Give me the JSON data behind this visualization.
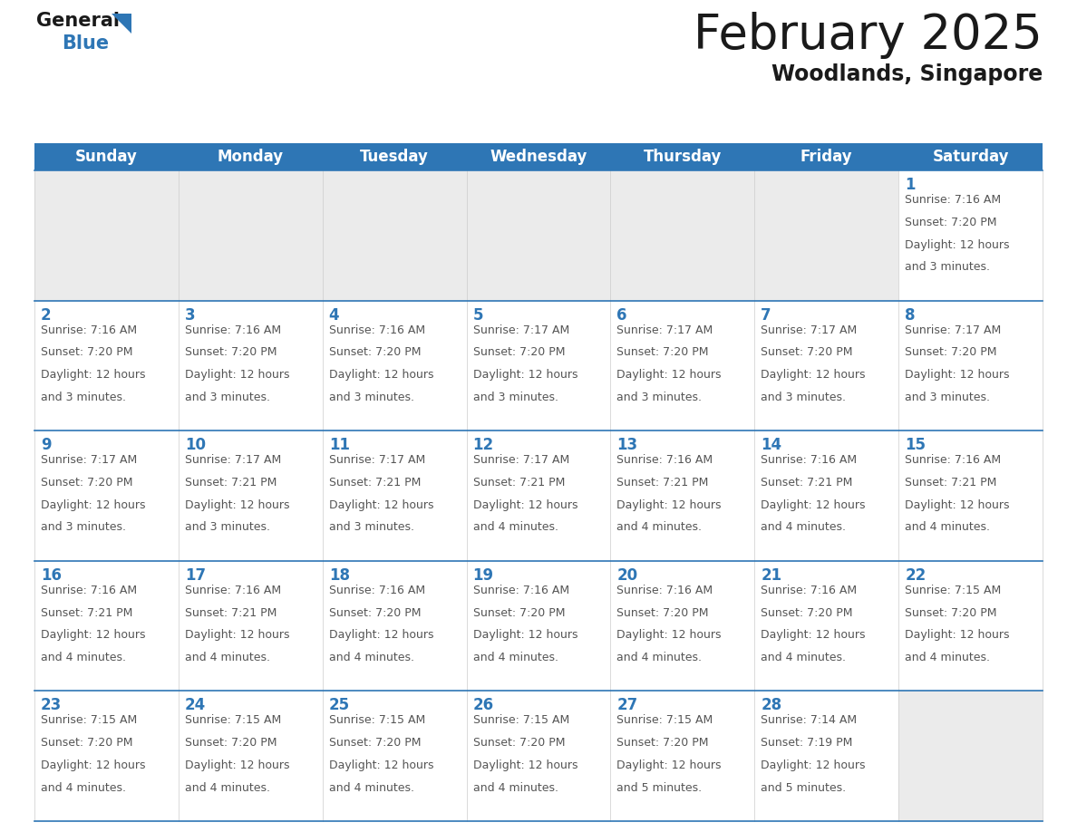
{
  "title": "February 2025",
  "subtitle": "Woodlands, Singapore",
  "header_bg": "#2E76B5",
  "header_text_color": "#FFFFFF",
  "cell_bg_empty": "#EBEBEB",
  "cell_bg_filled": "#FFFFFF",
  "day_number_color": "#2E76B5",
  "info_text_color": "#555555",
  "separator_color": "#2E76B5",
  "grid_line_color": "#CCCCCC",
  "days_of_week": [
    "Sunday",
    "Monday",
    "Tuesday",
    "Wednesday",
    "Thursday",
    "Friday",
    "Saturday"
  ],
  "weeks": [
    [
      {
        "day": null
      },
      {
        "day": null
      },
      {
        "day": null
      },
      {
        "day": null
      },
      {
        "day": null
      },
      {
        "day": null
      },
      {
        "day": 1,
        "sunrise": "7:16 AM",
        "sunset": "7:20 PM",
        "daylight_line1": "Daylight: 12 hours",
        "daylight_line2": "and 3 minutes."
      }
    ],
    [
      {
        "day": 2,
        "sunrise": "7:16 AM",
        "sunset": "7:20 PM",
        "daylight_line1": "Daylight: 12 hours",
        "daylight_line2": "and 3 minutes."
      },
      {
        "day": 3,
        "sunrise": "7:16 AM",
        "sunset": "7:20 PM",
        "daylight_line1": "Daylight: 12 hours",
        "daylight_line2": "and 3 minutes."
      },
      {
        "day": 4,
        "sunrise": "7:16 AM",
        "sunset": "7:20 PM",
        "daylight_line1": "Daylight: 12 hours",
        "daylight_line2": "and 3 minutes."
      },
      {
        "day": 5,
        "sunrise": "7:17 AM",
        "sunset": "7:20 PM",
        "daylight_line1": "Daylight: 12 hours",
        "daylight_line2": "and 3 minutes."
      },
      {
        "day": 6,
        "sunrise": "7:17 AM",
        "sunset": "7:20 PM",
        "daylight_line1": "Daylight: 12 hours",
        "daylight_line2": "and 3 minutes."
      },
      {
        "day": 7,
        "sunrise": "7:17 AM",
        "sunset": "7:20 PM",
        "daylight_line1": "Daylight: 12 hours",
        "daylight_line2": "and 3 minutes."
      },
      {
        "day": 8,
        "sunrise": "7:17 AM",
        "sunset": "7:20 PM",
        "daylight_line1": "Daylight: 12 hours",
        "daylight_line2": "and 3 minutes."
      }
    ],
    [
      {
        "day": 9,
        "sunrise": "7:17 AM",
        "sunset": "7:20 PM",
        "daylight_line1": "Daylight: 12 hours",
        "daylight_line2": "and 3 minutes."
      },
      {
        "day": 10,
        "sunrise": "7:17 AM",
        "sunset": "7:21 PM",
        "daylight_line1": "Daylight: 12 hours",
        "daylight_line2": "and 3 minutes."
      },
      {
        "day": 11,
        "sunrise": "7:17 AM",
        "sunset": "7:21 PM",
        "daylight_line1": "Daylight: 12 hours",
        "daylight_line2": "and 3 minutes."
      },
      {
        "day": 12,
        "sunrise": "7:17 AM",
        "sunset": "7:21 PM",
        "daylight_line1": "Daylight: 12 hours",
        "daylight_line2": "and 4 minutes."
      },
      {
        "day": 13,
        "sunrise": "7:16 AM",
        "sunset": "7:21 PM",
        "daylight_line1": "Daylight: 12 hours",
        "daylight_line2": "and 4 minutes."
      },
      {
        "day": 14,
        "sunrise": "7:16 AM",
        "sunset": "7:21 PM",
        "daylight_line1": "Daylight: 12 hours",
        "daylight_line2": "and 4 minutes."
      },
      {
        "day": 15,
        "sunrise": "7:16 AM",
        "sunset": "7:21 PM",
        "daylight_line1": "Daylight: 12 hours",
        "daylight_line2": "and 4 minutes."
      }
    ],
    [
      {
        "day": 16,
        "sunrise": "7:16 AM",
        "sunset": "7:21 PM",
        "daylight_line1": "Daylight: 12 hours",
        "daylight_line2": "and 4 minutes."
      },
      {
        "day": 17,
        "sunrise": "7:16 AM",
        "sunset": "7:21 PM",
        "daylight_line1": "Daylight: 12 hours",
        "daylight_line2": "and 4 minutes."
      },
      {
        "day": 18,
        "sunrise": "7:16 AM",
        "sunset": "7:20 PM",
        "daylight_line1": "Daylight: 12 hours",
        "daylight_line2": "and 4 minutes."
      },
      {
        "day": 19,
        "sunrise": "7:16 AM",
        "sunset": "7:20 PM",
        "daylight_line1": "Daylight: 12 hours",
        "daylight_line2": "and 4 minutes."
      },
      {
        "day": 20,
        "sunrise": "7:16 AM",
        "sunset": "7:20 PM",
        "daylight_line1": "Daylight: 12 hours",
        "daylight_line2": "and 4 minutes."
      },
      {
        "day": 21,
        "sunrise": "7:16 AM",
        "sunset": "7:20 PM",
        "daylight_line1": "Daylight: 12 hours",
        "daylight_line2": "and 4 minutes."
      },
      {
        "day": 22,
        "sunrise": "7:15 AM",
        "sunset": "7:20 PM",
        "daylight_line1": "Daylight: 12 hours",
        "daylight_line2": "and 4 minutes."
      }
    ],
    [
      {
        "day": 23,
        "sunrise": "7:15 AM",
        "sunset": "7:20 PM",
        "daylight_line1": "Daylight: 12 hours",
        "daylight_line2": "and 4 minutes."
      },
      {
        "day": 24,
        "sunrise": "7:15 AM",
        "sunset": "7:20 PM",
        "daylight_line1": "Daylight: 12 hours",
        "daylight_line2": "and 4 minutes."
      },
      {
        "day": 25,
        "sunrise": "7:15 AM",
        "sunset": "7:20 PM",
        "daylight_line1": "Daylight: 12 hours",
        "daylight_line2": "and 4 minutes."
      },
      {
        "day": 26,
        "sunrise": "7:15 AM",
        "sunset": "7:20 PM",
        "daylight_line1": "Daylight: 12 hours",
        "daylight_line2": "and 4 minutes."
      },
      {
        "day": 27,
        "sunrise": "7:15 AM",
        "sunset": "7:20 PM",
        "daylight_line1": "Daylight: 12 hours",
        "daylight_line2": "and 5 minutes."
      },
      {
        "day": 28,
        "sunrise": "7:14 AM",
        "sunset": "7:19 PM",
        "daylight_line1": "Daylight: 12 hours",
        "daylight_line2": "and 5 minutes."
      },
      {
        "day": null
      }
    ]
  ],
  "title_fontsize": 38,
  "subtitle_fontsize": 17,
  "header_fontsize": 12,
  "day_number_fontsize": 12,
  "info_fontsize": 9.0,
  "logo_general_fontsize": 15,
  "logo_blue_fontsize": 15
}
